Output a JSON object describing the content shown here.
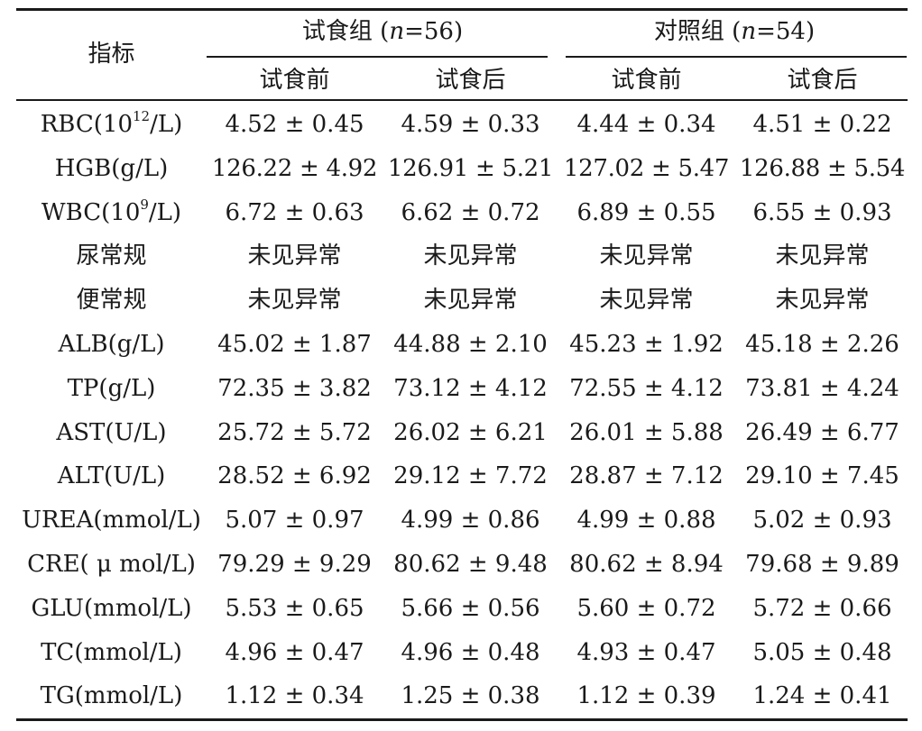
{
  "table": {
    "header": {
      "indicator": "指标",
      "group1": {
        "label": "试食组 (",
        "n_symbol": "n",
        "n_value": "=56)"
      },
      "group2": {
        "label": "对照组 (",
        "n_symbol": "n",
        "n_value": "=54)"
      },
      "sub": [
        "试食前",
        "试食后",
        "试食前",
        "试食后"
      ]
    },
    "rows": [
      {
        "label_pre": "RBC(10",
        "label_sup": "12",
        "label_post": "/L)",
        "values": [
          "4.52 ± 0.45",
          "4.59 ± 0.33",
          "4.44 ± 0.34",
          "4.51 ± 0.22"
        ]
      },
      {
        "label_pre": "HGB(g/L)",
        "label_sup": "",
        "label_post": "",
        "values": [
          "126.22 ± 4.92",
          "126.91 ± 5.21",
          "127.02 ± 5.47",
          "126.88 ± 5.54"
        ]
      },
      {
        "label_pre": "WBC(10",
        "label_sup": "9",
        "label_post": "/L)",
        "values": [
          "6.72 ± 0.63",
          "6.62 ± 0.72",
          "6.89 ± 0.55",
          "6.55 ± 0.93"
        ]
      },
      {
        "label_pre": "尿常规",
        "label_sup": "",
        "label_post": "",
        "values": [
          "未见异常",
          "未见异常",
          "未见异常",
          "未见异常"
        ]
      },
      {
        "label_pre": "便常规",
        "label_sup": "",
        "label_post": "",
        "values": [
          "未见异常",
          "未见异常",
          "未见异常",
          "未见异常"
        ]
      },
      {
        "label_pre": "ALB(g/L)",
        "label_sup": "",
        "label_post": "",
        "values": [
          "45.02 ± 1.87",
          "44.88 ± 2.10",
          "45.23 ± 1.92",
          "45.18 ± 2.26"
        ]
      },
      {
        "label_pre": "TP(g/L)",
        "label_sup": "",
        "label_post": "",
        "values": [
          "72.35 ± 3.82",
          "73.12 ± 4.12",
          "72.55 ± 4.12",
          "73.81 ± 4.24"
        ]
      },
      {
        "label_pre": "AST(U/L)",
        "label_sup": "",
        "label_post": "",
        "values": [
          "25.72 ± 5.72",
          "26.02 ± 6.21",
          "26.01 ± 5.88",
          "26.49 ± 6.77"
        ]
      },
      {
        "label_pre": "ALT(U/L)",
        "label_sup": "",
        "label_post": "",
        "values": [
          "28.52 ± 6.92",
          "29.12 ± 7.72",
          "28.87 ± 7.12",
          "29.10 ± 7.45"
        ]
      },
      {
        "label_pre": "UREA(mmol/L)",
        "label_sup": "",
        "label_post": "",
        "values": [
          "5.07 ± 0.97",
          "4.99 ± 0.86",
          "4.99 ± 0.88",
          "5.02 ± 0.93"
        ]
      },
      {
        "label_pre": "CRE( μ mol/L)",
        "label_sup": "",
        "label_post": "",
        "values": [
          "79.29 ± 9.29",
          "80.62 ± 9.48",
          "80.62 ± 8.94",
          "79.68 ± 9.89"
        ]
      },
      {
        "label_pre": "GLU(mmol/L)",
        "label_sup": "",
        "label_post": "",
        "values": [
          "5.53 ± 0.65",
          "5.66 ± 0.56",
          "5.60 ± 0.72",
          "5.72 ± 0.66"
        ]
      },
      {
        "label_pre": "TC(mmol/L)",
        "label_sup": "",
        "label_post": "",
        "values": [
          "4.96 ± 0.47",
          "4.96 ± 0.48",
          "4.93 ± 0.47",
          "5.05 ± 0.48"
        ]
      },
      {
        "label_pre": "TG(mmol/L)",
        "label_sup": "",
        "label_post": "",
        "values": [
          "1.12 ± 0.34",
          "1.25 ± 0.38",
          "1.12 ± 0.39",
          "1.24 ± 0.41"
        ]
      }
    ]
  }
}
